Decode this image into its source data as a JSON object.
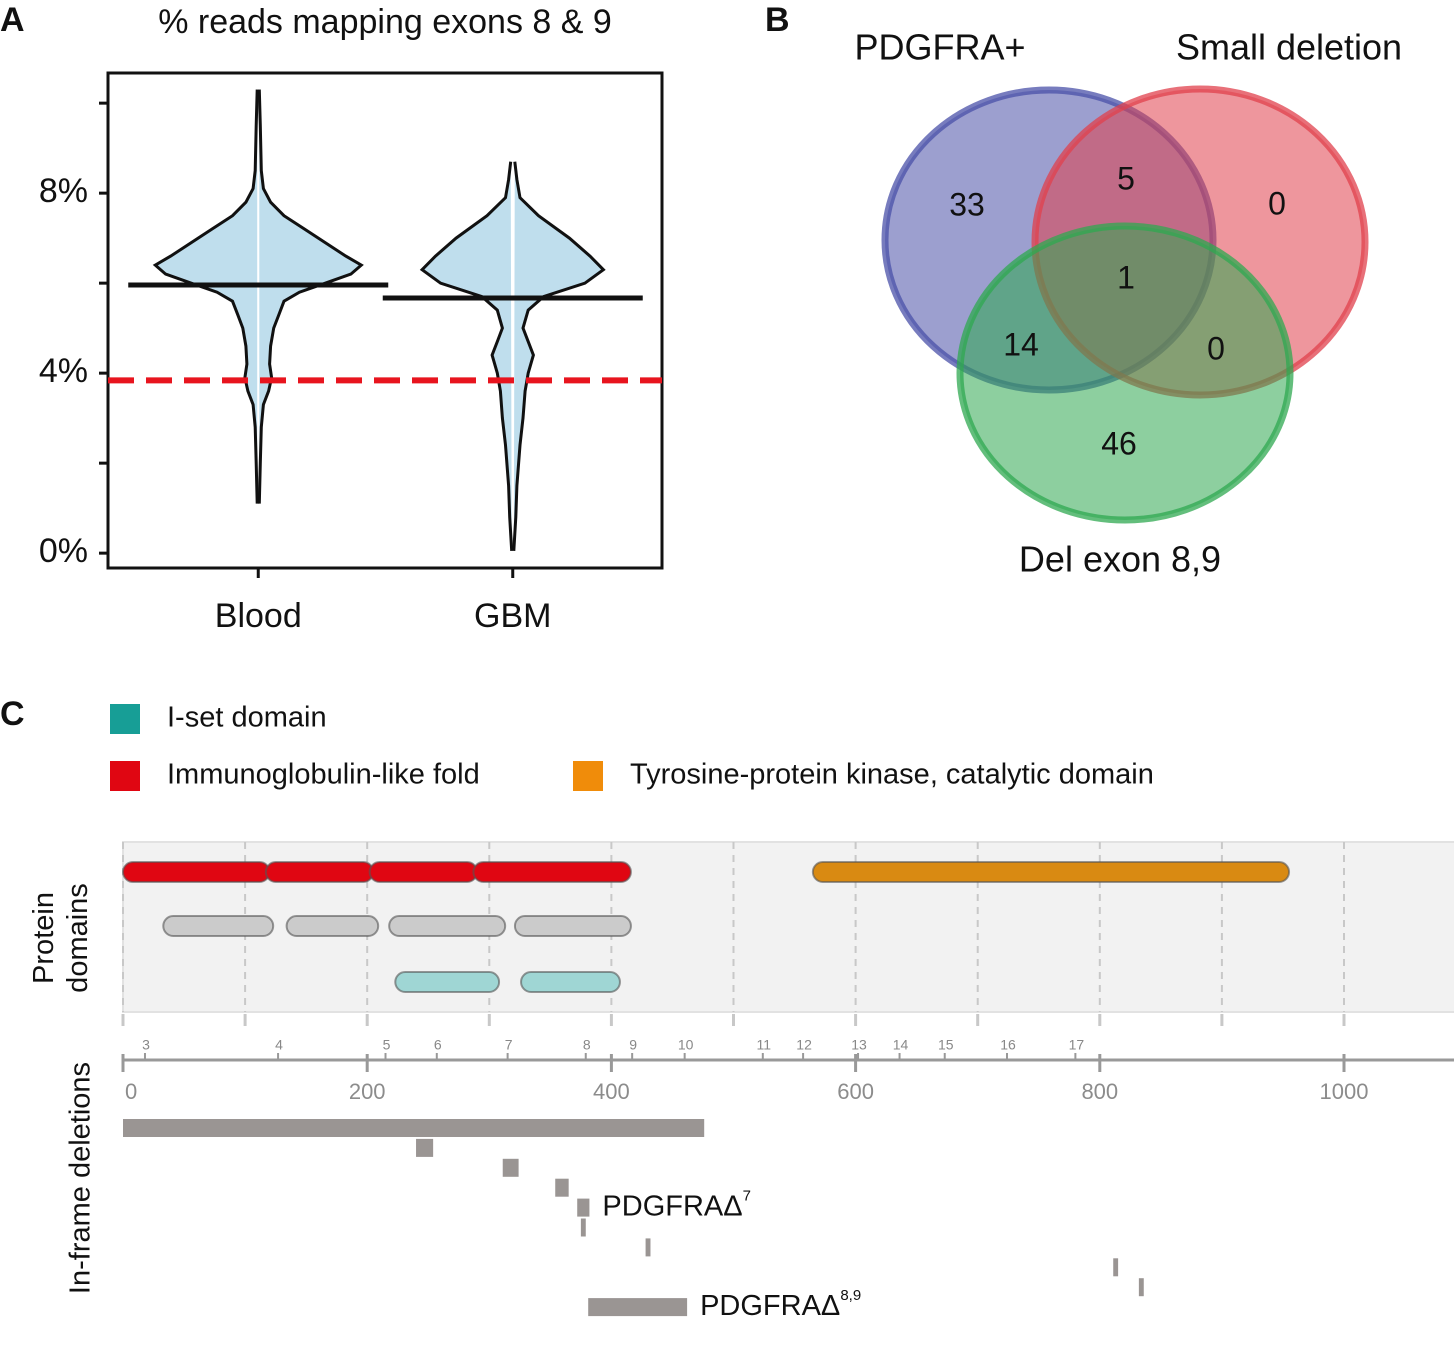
{
  "chart_data": [
    {
      "type": "violin",
      "panel_label": "A",
      "title": "% reads mapping exons 8 & 9",
      "categories": [
        "Blood",
        "GBM"
      ],
      "color": "#bfdeed",
      "violins": [
        {
          "y": [
            10.3,
            9.5,
            8.5,
            8.1,
            7.8,
            7.5,
            7.2,
            6.9,
            6.6,
            6.4,
            6.2,
            6.0,
            5.8,
            5.6,
            5.3,
            5.0,
            4.6,
            4.2,
            3.9,
            3.6,
            3.3,
            2.8,
            2.0,
            1.1
          ],
          "density": [
            0.01,
            0.02,
            0.03,
            0.05,
            0.12,
            0.25,
            0.45,
            0.65,
            0.85,
            1.0,
            0.9,
            0.65,
            0.4,
            0.25,
            0.2,
            0.15,
            0.12,
            0.11,
            0.13,
            0.1,
            0.05,
            0.03,
            0.02,
            0.01
          ],
          "median": 5.96
        },
        {
          "y": [
            8.7,
            8.3,
            7.9,
            7.5,
            7.0,
            6.6,
            6.3,
            6.0,
            5.7,
            5.4,
            5.0,
            4.7,
            4.4,
            4.0,
            3.6,
            3.0,
            2.4,
            1.5,
            0.8,
            0.05
          ],
          "density": [
            0.02,
            0.04,
            0.07,
            0.25,
            0.55,
            0.75,
            0.88,
            0.7,
            0.3,
            0.15,
            0.1,
            0.15,
            0.2,
            0.15,
            0.12,
            0.1,
            0.07,
            0.04,
            0.03,
            0.01
          ],
          "median": 5.67
        }
      ],
      "threshold": {
        "value": 3.84,
        "color": "#e8141e"
      },
      "ylim": [
        -0.33,
        10.67
      ],
      "yticks": [
        {
          "value": 0,
          "label": "0%"
        },
        {
          "value": 4,
          "label": "4%"
        },
        {
          "value": 8,
          "label": "8%"
        }
      ],
      "minor_yticks": [
        2,
        6,
        10
      ]
    },
    {
      "type": "venn",
      "panel_label": "B",
      "sets": [
        {
          "name": "PDGFRA+",
          "color": "#4a50a8"
        },
        {
          "name": "Small deletion",
          "color": "#e0404c"
        },
        {
          "name": "Del exon 8,9",
          "color": "#2fa850"
        }
      ],
      "regions": [
        {
          "sets": [
            0
          ],
          "value": 33
        },
        {
          "sets": [
            0,
            1
          ],
          "value": 5
        },
        {
          "sets": [
            1
          ],
          "value": 0
        },
        {
          "sets": [
            0,
            1,
            2
          ],
          "value": 1
        },
        {
          "sets": [
            0,
            2
          ],
          "value": 14
        },
        {
          "sets": [
            1,
            2
          ],
          "value": 0
        },
        {
          "sets": [
            2
          ],
          "value": 46
        }
      ]
    },
    {
      "type": "domains",
      "panel_label": "C",
      "legend": [
        {
          "name": "I-set domain",
          "color": "#179e96"
        },
        {
          "name": "Immunoglobulin-like fold",
          "color": "#e00612"
        },
        {
          "name": "Tyrosine-protein kinase, catalytic domain",
          "color": "#f08c0a"
        }
      ],
      "track_label": [
        "Protein",
        "domains"
      ],
      "deletion_label": "In-frame deletions",
      "xlim": [
        0,
        1090
      ],
      "xticks": [
        0,
        200,
        400,
        600,
        800,
        1000
      ],
      "gridticks": [
        0,
        100,
        200,
        300,
        400,
        500,
        600,
        700,
        800,
        900,
        1000
      ],
      "exons": [
        {
          "label": "3",
          "position": 18
        },
        {
          "label": "4",
          "position": 127
        },
        {
          "label": "5",
          "position": 215
        },
        {
          "label": "6",
          "position": 257
        },
        {
          "label": "7",
          "position": 315
        },
        {
          "label": "8",
          "position": 379
        },
        {
          "label": "9",
          "position": 417
        },
        {
          "label": "10",
          "position": 460
        },
        {
          "label": "11",
          "position": 524
        },
        {
          "label": "12",
          "position": 557
        },
        {
          "label": "13",
          "position": 602
        },
        {
          "label": "14",
          "position": 636
        },
        {
          "label": "15",
          "position": 673
        },
        {
          "label": "16",
          "position": 724
        },
        {
          "label": "17",
          "position": 780
        }
      ],
      "tracks": [
        [
          {
            "start": 0,
            "end": 120,
            "color": "#e00612"
          },
          {
            "start": 117,
            "end": 205,
            "color": "#e00612"
          },
          {
            "start": 202,
            "end": 290,
            "color": "#e00612"
          },
          {
            "start": 287,
            "end": 416,
            "color": "#e00612"
          },
          {
            "start": 565,
            "end": 955,
            "color": "#d98a12"
          }
        ],
        [
          {
            "start": 33,
            "end": 123,
            "color": "#cbcbcb"
          },
          {
            "start": 134,
            "end": 209,
            "color": "#cbcbcb"
          },
          {
            "start": 218,
            "end": 313,
            "color": "#cbcbcb"
          },
          {
            "start": 321,
            "end": 416,
            "color": "#cbcbcb"
          }
        ],
        [
          {
            "start": 223,
            "end": 308,
            "color": "#9fd6d4"
          },
          {
            "start": 326,
            "end": 407,
            "color": "#9fd6d4"
          }
        ]
      ],
      "deletion_color": "#9a9593",
      "deletions": [
        {
          "start": 0,
          "end": 476
        },
        {
          "start": 240,
          "end": 254
        },
        {
          "start": 311,
          "end": 324
        },
        {
          "start": 354,
          "end": 365
        },
        {
          "start": 372,
          "end": 382,
          "label": "PDGFRAΔ",
          "label_sup": "7"
        },
        {
          "start": 375,
          "end": 379
        },
        {
          "start": 428,
          "end": 432
        },
        {
          "start": 811,
          "end": 815
        },
        {
          "start": 832,
          "end": 836
        },
        {
          "start": 381,
          "end": 462,
          "label": "PDGFRAΔ",
          "label_sup": "8,9"
        }
      ]
    }
  ]
}
